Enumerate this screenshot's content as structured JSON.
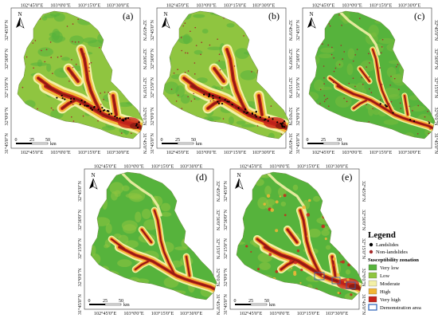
{
  "colors": {
    "very_low": "#56b33c",
    "low": "#8fc540",
    "moderate": "#f3f0a6",
    "high": "#f2b636",
    "very_high": "#c8241c",
    "deep_red": "#8a1b12",
    "landslide": "#000000",
    "non_landslide": "#a52a2a",
    "demo_area": "#2a62b8"
  },
  "axis_labels": {
    "lon": [
      "102°45'0\"E",
      "103°0'0\"E",
      "103°15'0\"E",
      "103°30'0\"E"
    ],
    "lat": [
      "32°45'0\"N",
      "32°30'0\"N",
      "32°15'0\"N",
      "32°0'0\"N",
      "31°45'0\"N"
    ]
  },
  "scale_bar": {
    "labels": [
      "0",
      "25",
      "50"
    ],
    "unit": "km"
  },
  "north_arrow": {
    "label": "N",
    "icon": "north-arrow-icon"
  },
  "panels": [
    {
      "id": "a",
      "label": "(a)",
      "mode": "dense"
    },
    {
      "id": "b",
      "label": "(b)",
      "mode": "dense"
    },
    {
      "id": "c",
      "label": "(c)",
      "mode": "light"
    },
    {
      "id": "d",
      "label": "(d)",
      "mode": "medium"
    },
    {
      "id": "e",
      "label": "(e)",
      "mode": "full"
    }
  ],
  "legend": {
    "title": "Legend",
    "points": [
      {
        "label": "Landslides",
        "color": "#000000"
      },
      {
        "label": "Non-landslides",
        "color": "#a52a2a"
      }
    ],
    "zonation_title": "Susceptibility zonation",
    "classes": [
      {
        "label": "Very low",
        "color": "#56b33c"
      },
      {
        "label": "Low",
        "color": "#8fc540"
      },
      {
        "label": "Moderate",
        "color": "#f3f0a6"
      },
      {
        "label": "High",
        "color": "#f2b636"
      },
      {
        "label": "Very high",
        "color": "#c8241c"
      }
    ],
    "demo": {
      "label": "Demonstration area",
      "color": "#2a62b8"
    }
  }
}
